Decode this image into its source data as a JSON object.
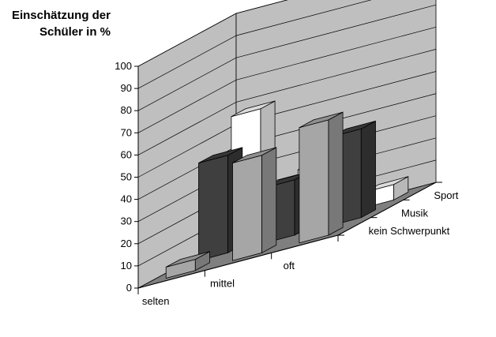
{
  "chart_data": {
    "type": "bar",
    "title_lines": [
      "Einschätzung der",
      "Schüler in %"
    ],
    "categories": [
      "selten",
      "mittel",
      "oft"
    ],
    "series": [
      {
        "name": "kein Schwerpunkt",
        "values": [
          5,
          44,
          52
        ]
      },
      {
        "name": "Musik",
        "values": [
          44,
          25,
          40
        ]
      },
      {
        "name": "Sport",
        "values": [
          57,
          25,
          7
        ]
      }
    ],
    "y_ticks": [
      "0",
      "10",
      "20",
      "30",
      "40",
      "50",
      "60",
      "70",
      "80",
      "90",
      "100"
    ],
    "ylim": [
      0,
      100
    ],
    "grid": true,
    "colors": {
      "kein Schwerpunkt": "#a6a6a6",
      "Musik": "#3f3f3f",
      "Sport": "#ffffff",
      "walls": "#bfbfbf",
      "floor": "#7f7f7f"
    }
  }
}
